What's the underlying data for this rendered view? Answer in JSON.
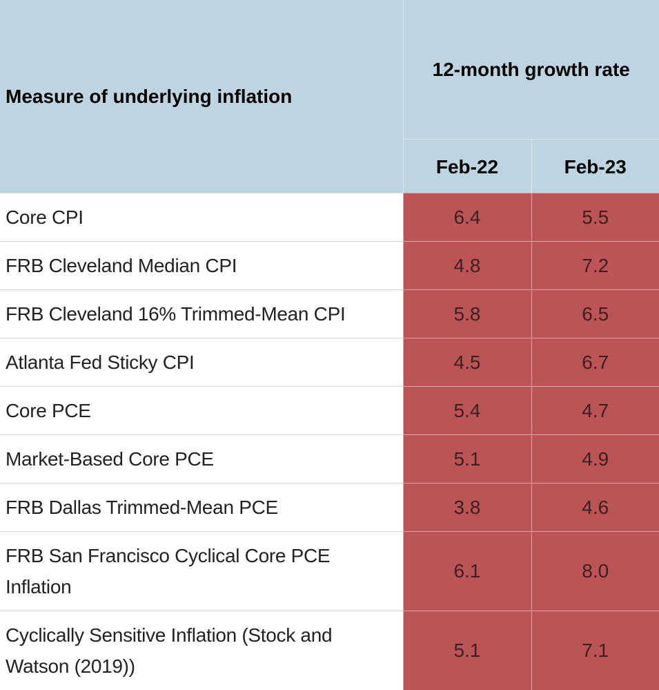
{
  "chart_data": {
    "type": "table",
    "header": {
      "measure_label": "Measure of underlying inflation",
      "group_label": "12-month growth rate",
      "columns": [
        "Feb-22",
        "Feb-23"
      ]
    },
    "rows": [
      {
        "label": "Core CPI",
        "values": [
          "6.4",
          "5.5"
        ]
      },
      {
        "label": "FRB Cleveland Median CPI",
        "values": [
          "4.8",
          "7.2"
        ]
      },
      {
        "label": "FRB Cleveland 16% Trimmed-Mean CPI",
        "values": [
          "5.8",
          "6.5"
        ]
      },
      {
        "label": "Atlanta Fed Sticky CPI",
        "values": [
          "4.5",
          "6.7"
        ]
      },
      {
        "label": "Core PCE",
        "values": [
          "5.4",
          "4.7"
        ]
      },
      {
        "label": "Market-Based Core PCE",
        "values": [
          "5.1",
          "4.9"
        ]
      },
      {
        "label": "FRB Dallas Trimmed-Mean PCE",
        "values": [
          "3.8",
          "4.6"
        ]
      },
      {
        "label": "FRB San Francisco Cyclical Core PCE Inflation",
        "values": [
          "6.1",
          "8.0"
        ]
      },
      {
        "label": "Cyclically Sensitive Inflation (Stock and Watson (2019))",
        "values": [
          "5.1",
          "7.1"
        ]
      }
    ],
    "colors": {
      "header_bg": "#bed4e0",
      "value_cell_bg": "#bc5356",
      "label_cell_bg": "#ffffff"
    }
  }
}
